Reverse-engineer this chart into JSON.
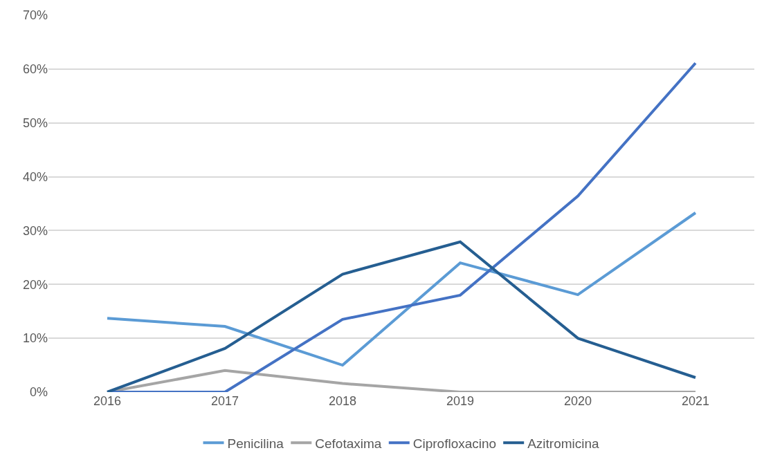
{
  "chart_data": {
    "type": "line",
    "categories": [
      "2016",
      "2017",
      "2018",
      "2019",
      "2020",
      "2021"
    ],
    "series": [
      {
        "name": "Penicilina",
        "color": "#5b9bd5",
        "values": [
          13.7,
          12.2,
          5.0,
          24.0,
          18.1,
          33.3
        ]
      },
      {
        "name": "Cefotaxima",
        "color": "#a5a5a5",
        "values": [
          0,
          4.0,
          1.6,
          0,
          0,
          0
        ]
      },
      {
        "name": "Ciprofloxacino",
        "color": "#4472c4",
        "values": [
          0,
          0,
          13.5,
          18.0,
          36.4,
          61.1
        ]
      },
      {
        "name": "Azitromicina",
        "color": "#255e91",
        "values": [
          0,
          8.1,
          21.9,
          27.9,
          10.0,
          2.7
        ]
      }
    ],
    "ylim": [
      0,
      70
    ],
    "yticks": [
      {
        "value": 0,
        "label": "0%"
      },
      {
        "value": 10,
        "label": "10%"
      },
      {
        "value": 20,
        "label": "20%"
      },
      {
        "value": 30,
        "label": "30%"
      },
      {
        "value": 40,
        "label": "40%"
      },
      {
        "value": 50,
        "label": "50%"
      },
      {
        "value": 60,
        "label": "60%"
      },
      {
        "value": 70,
        "label": "70%"
      }
    ],
    "grid": "y",
    "legend": "bottom",
    "marker": "none",
    "line_style": "solid"
  }
}
